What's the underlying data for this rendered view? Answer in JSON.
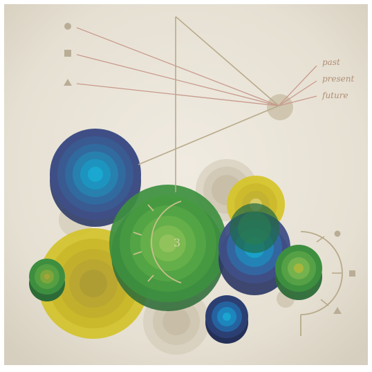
{
  "artwork": {
    "labels": {
      "past": "past",
      "present": "present",
      "future": "future",
      "center_number": "3"
    },
    "colors": {
      "paper": "#ebe6db",
      "paper_edge": "#d8d1c2",
      "line_tan": "#b8a98a",
      "line_rose": "#c89a8d",
      "label": "#b08f74",
      "navy": "#3f4f86",
      "teal": "#1aa0c8",
      "green": "#3d8f3f",
      "yellow": "#d2c22a",
      "olive": "#a8a73a",
      "beige": "#cfc6b2"
    },
    "icons": [
      "circle-icon",
      "square-icon",
      "triangle-icon"
    ]
  }
}
